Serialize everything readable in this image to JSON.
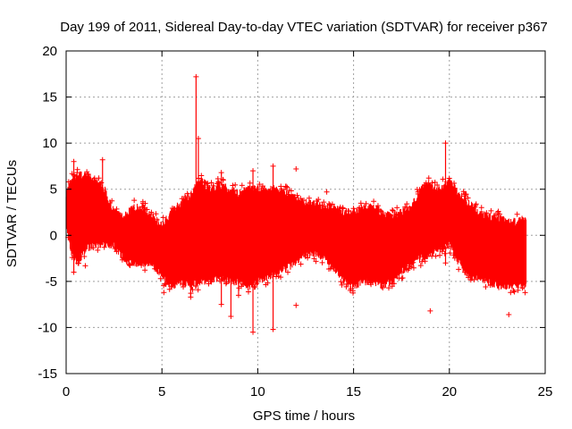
{
  "chart_data": {
    "type": "scatter",
    "title": "Day 199 of 2011, Sidereal Day-to-day VTEC variation (SDTVAR) for receiver p367",
    "xlabel": "GPS time / hours",
    "ylabel": "SDTVAR / TECUs",
    "xlim": [
      0,
      25
    ],
    "ylim": [
      -15,
      20
    ],
    "x_ticks": [
      0,
      5,
      10,
      15,
      20,
      25
    ],
    "x_tick_labels": [
      "0",
      "5",
      "10",
      "15",
      "20",
      "25"
    ],
    "y_ticks": [
      -15,
      -10,
      -5,
      0,
      5,
      10,
      15,
      20
    ],
    "y_tick_labels": [
      "-15",
      "-10",
      "-5",
      "0",
      "5",
      "10",
      "15",
      "20"
    ],
    "grid": true,
    "marker": "+",
    "color": "#ff0000",
    "series": [
      {
        "name": "SDTVAR",
        "envelope_x": [
          0,
          0.3,
          0.6,
          1.0,
          1.5,
          2.0,
          2.5,
          3.0,
          3.5,
          4.0,
          4.5,
          5.0,
          5.5,
          6.0,
          6.5,
          7.0,
          7.5,
          8.0,
          8.5,
          9.0,
          9.5,
          10.0,
          10.5,
          11.0,
          11.5,
          12.0,
          12.5,
          13.0,
          13.5,
          14.0,
          14.5,
          15.0,
          15.5,
          16.0,
          16.5,
          17.0,
          17.5,
          18.0,
          18.5,
          19.0,
          19.5,
          20.0,
          20.5,
          21.0,
          21.5,
          22.0,
          22.5,
          23.0,
          23.5,
          24.0
        ],
        "upper": [
          4.5,
          6.0,
          6.5,
          6.5,
          6.0,
          5.0,
          2.5,
          2.0,
          3.0,
          3.0,
          2.0,
          1.0,
          2.5,
          3.5,
          4.5,
          6.0,
          5.0,
          5.5,
          5.0,
          4.5,
          5.0,
          5.0,
          5.0,
          5.0,
          4.5,
          4.0,
          3.5,
          3.5,
          3.0,
          3.0,
          2.5,
          2.5,
          3.0,
          3.0,
          2.5,
          2.0,
          2.5,
          3.0,
          5.0,
          5.5,
          5.0,
          6.0,
          4.5,
          3.5,
          2.5,
          2.0,
          2.0,
          1.5,
          1.5,
          1.8
        ],
        "lower": [
          1.0,
          -2.0,
          -3.0,
          -1.5,
          -1.0,
          -1.0,
          -1.0,
          -2.5,
          -3.0,
          -3.0,
          -3.0,
          -4.5,
          -5.5,
          -5.0,
          -5.5,
          -5.0,
          -5.0,
          -4.5,
          -5.0,
          -5.0,
          -5.5,
          -5.0,
          -4.5,
          -4.0,
          -3.5,
          -3.0,
          -2.0,
          -2.0,
          -2.5,
          -3.5,
          -5.0,
          -5.5,
          -5.0,
          -5.0,
          -5.5,
          -5.0,
          -4.0,
          -3.0,
          -2.5,
          -2.0,
          -1.5,
          -1.0,
          -3.0,
          -4.5,
          -4.5,
          -5.0,
          -5.5,
          -5.5,
          -5.5,
          -5.5
        ]
      }
    ],
    "spikes": [
      {
        "x": 0.4,
        "top": 8.0,
        "bottom": -4.0
      },
      {
        "x": 1.9,
        "top": 8.2,
        "bottom": 0
      },
      {
        "x": 6.5,
        "top": 0,
        "bottom": -6.7
      },
      {
        "x": 6.78,
        "top": 17.2,
        "bottom": -5.5
      },
      {
        "x": 6.9,
        "top": 10.5,
        "bottom": -5.0
      },
      {
        "x": 8.1,
        "top": 6.8,
        "bottom": -7.5
      },
      {
        "x": 8.6,
        "top": 0,
        "bottom": -8.8
      },
      {
        "x": 9.0,
        "top": 0,
        "bottom": -6.5
      },
      {
        "x": 9.75,
        "top": 7.0,
        "bottom": -10.5
      },
      {
        "x": 10.8,
        "top": 7.5,
        "bottom": -10.2
      },
      {
        "x": 19.8,
        "top": 10.0,
        "bottom": -3.0
      }
    ],
    "outliers": [
      {
        "x": 12.0,
        "y": 7.2
      },
      {
        "x": 13.6,
        "y": 4.7
      },
      {
        "x": 12.0,
        "y": -7.6
      },
      {
        "x": 19.0,
        "y": -8.2
      },
      {
        "x": 23.1,
        "y": -8.6
      },
      {
        "x": 5.1,
        "y": -6.2
      },
      {
        "x": 1.0,
        "y": -3.3
      },
      {
        "x": 6.6,
        "y": -5.9
      }
    ]
  }
}
